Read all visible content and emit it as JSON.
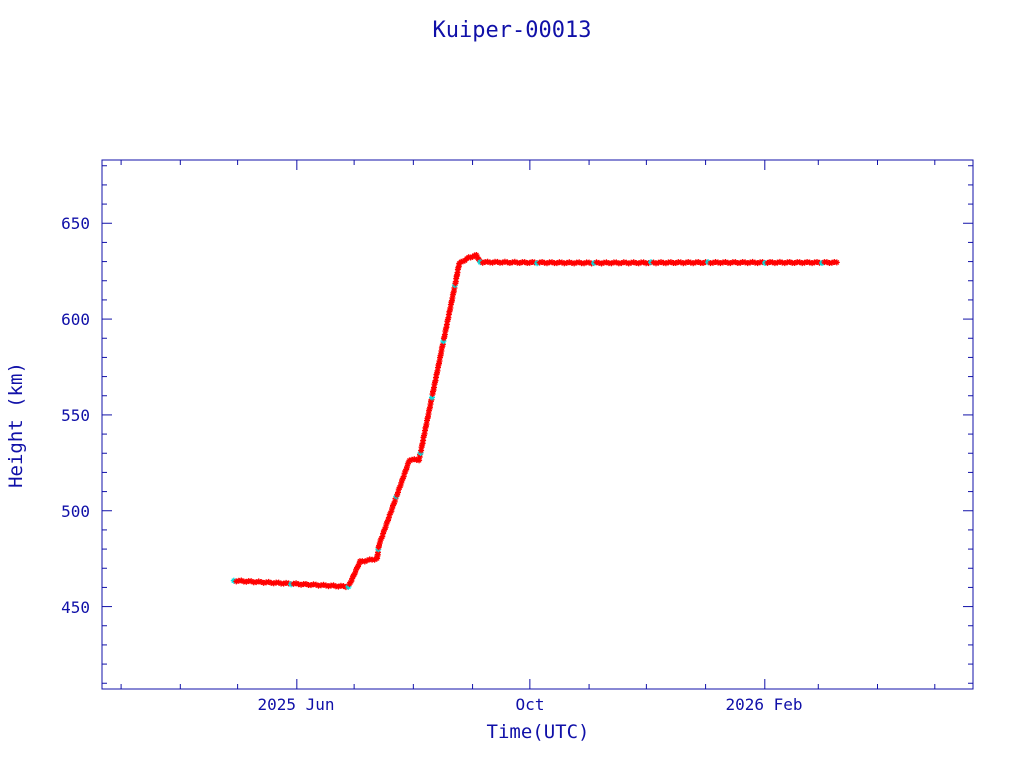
{
  "chart_data": {
    "type": "scatter",
    "title": "Kuiper-00013",
    "xlabel": "Time(UTC)",
    "ylabel": "Height (km)",
    "xlim": [
      "2025-02-19",
      "2026-05-21"
    ],
    "ylim": [
      407,
      683
    ],
    "x_ticks": [
      {
        "date": "2025-06-01",
        "label": "2025 Jun"
      },
      {
        "date": "2025-10-01",
        "label": "Oct"
      },
      {
        "date": "2026-02-01",
        "label": "2026 Feb"
      }
    ],
    "y_ticks": [
      450,
      500,
      550,
      600,
      650
    ],
    "grid": false,
    "colors": {
      "axis": "#1010a8",
      "markers": "#ff0000",
      "secondary_markers": "#00e0e0",
      "line": "#000080"
    },
    "series": [
      {
        "x": [
          "2025-04-29",
          "2025-06-28",
          "2025-07-01",
          "2025-07-04",
          "2025-07-13",
          "2025-07-14",
          "2025-07-30",
          "2025-08-04",
          "2025-08-23",
          "2025-08-25",
          "2025-08-30",
          "2025-09-03",
          "2025-09-05",
          "2025-11-01",
          "2026-01-01",
          "2026-03-12"
        ],
        "y": [
          463.5,
          460.4,
          466.7,
          473.4,
          475,
          482,
          526.6,
          526.6,
          618.7,
          629,
          632,
          633.3,
          629.7,
          629.3,
          629.5,
          629.5
        ]
      }
    ]
  }
}
